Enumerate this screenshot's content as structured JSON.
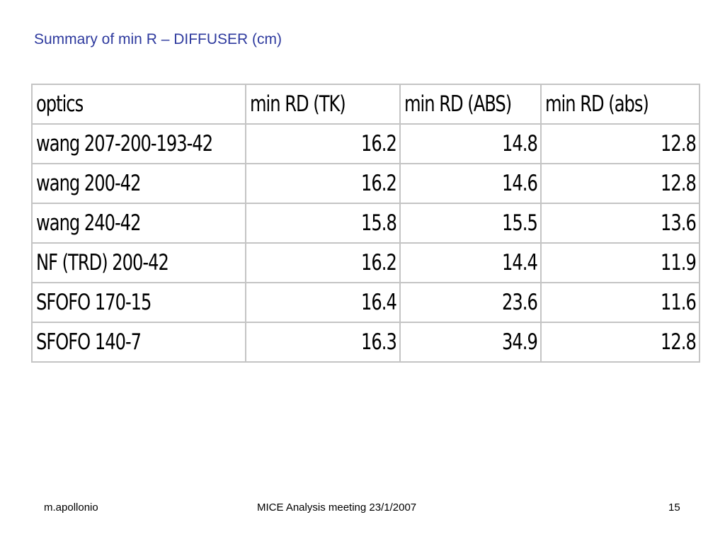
{
  "slide": {
    "title": "Summary of min R – DIFFUSER (cm)"
  },
  "table": {
    "headers": [
      "optics",
      "min RD (TK)",
      "min RD (ABS)",
      "min RD (abs)"
    ],
    "rows": [
      [
        "wang 207-200-193-42",
        "16.2",
        "14.8",
        "12.8"
      ],
      [
        "wang 200-42",
        "16.2",
        "14.6",
        "12.8"
      ],
      [
        "wang 240-42",
        "15.8",
        "15.5",
        "13.6"
      ],
      [
        "NF (TRD) 200-42",
        "16.2",
        "14.4",
        "11.9"
      ],
      [
        "SFOFO 170-15",
        "16.4",
        "23.6",
        "11.6"
      ],
      [
        "SFOFO 140-7",
        "16.3",
        "34.9",
        "12.8"
      ]
    ]
  },
  "footer": {
    "author": "m.apollonio",
    "meeting": "MICE Analysis meeting 23/1/2007",
    "page_number": "15"
  }
}
